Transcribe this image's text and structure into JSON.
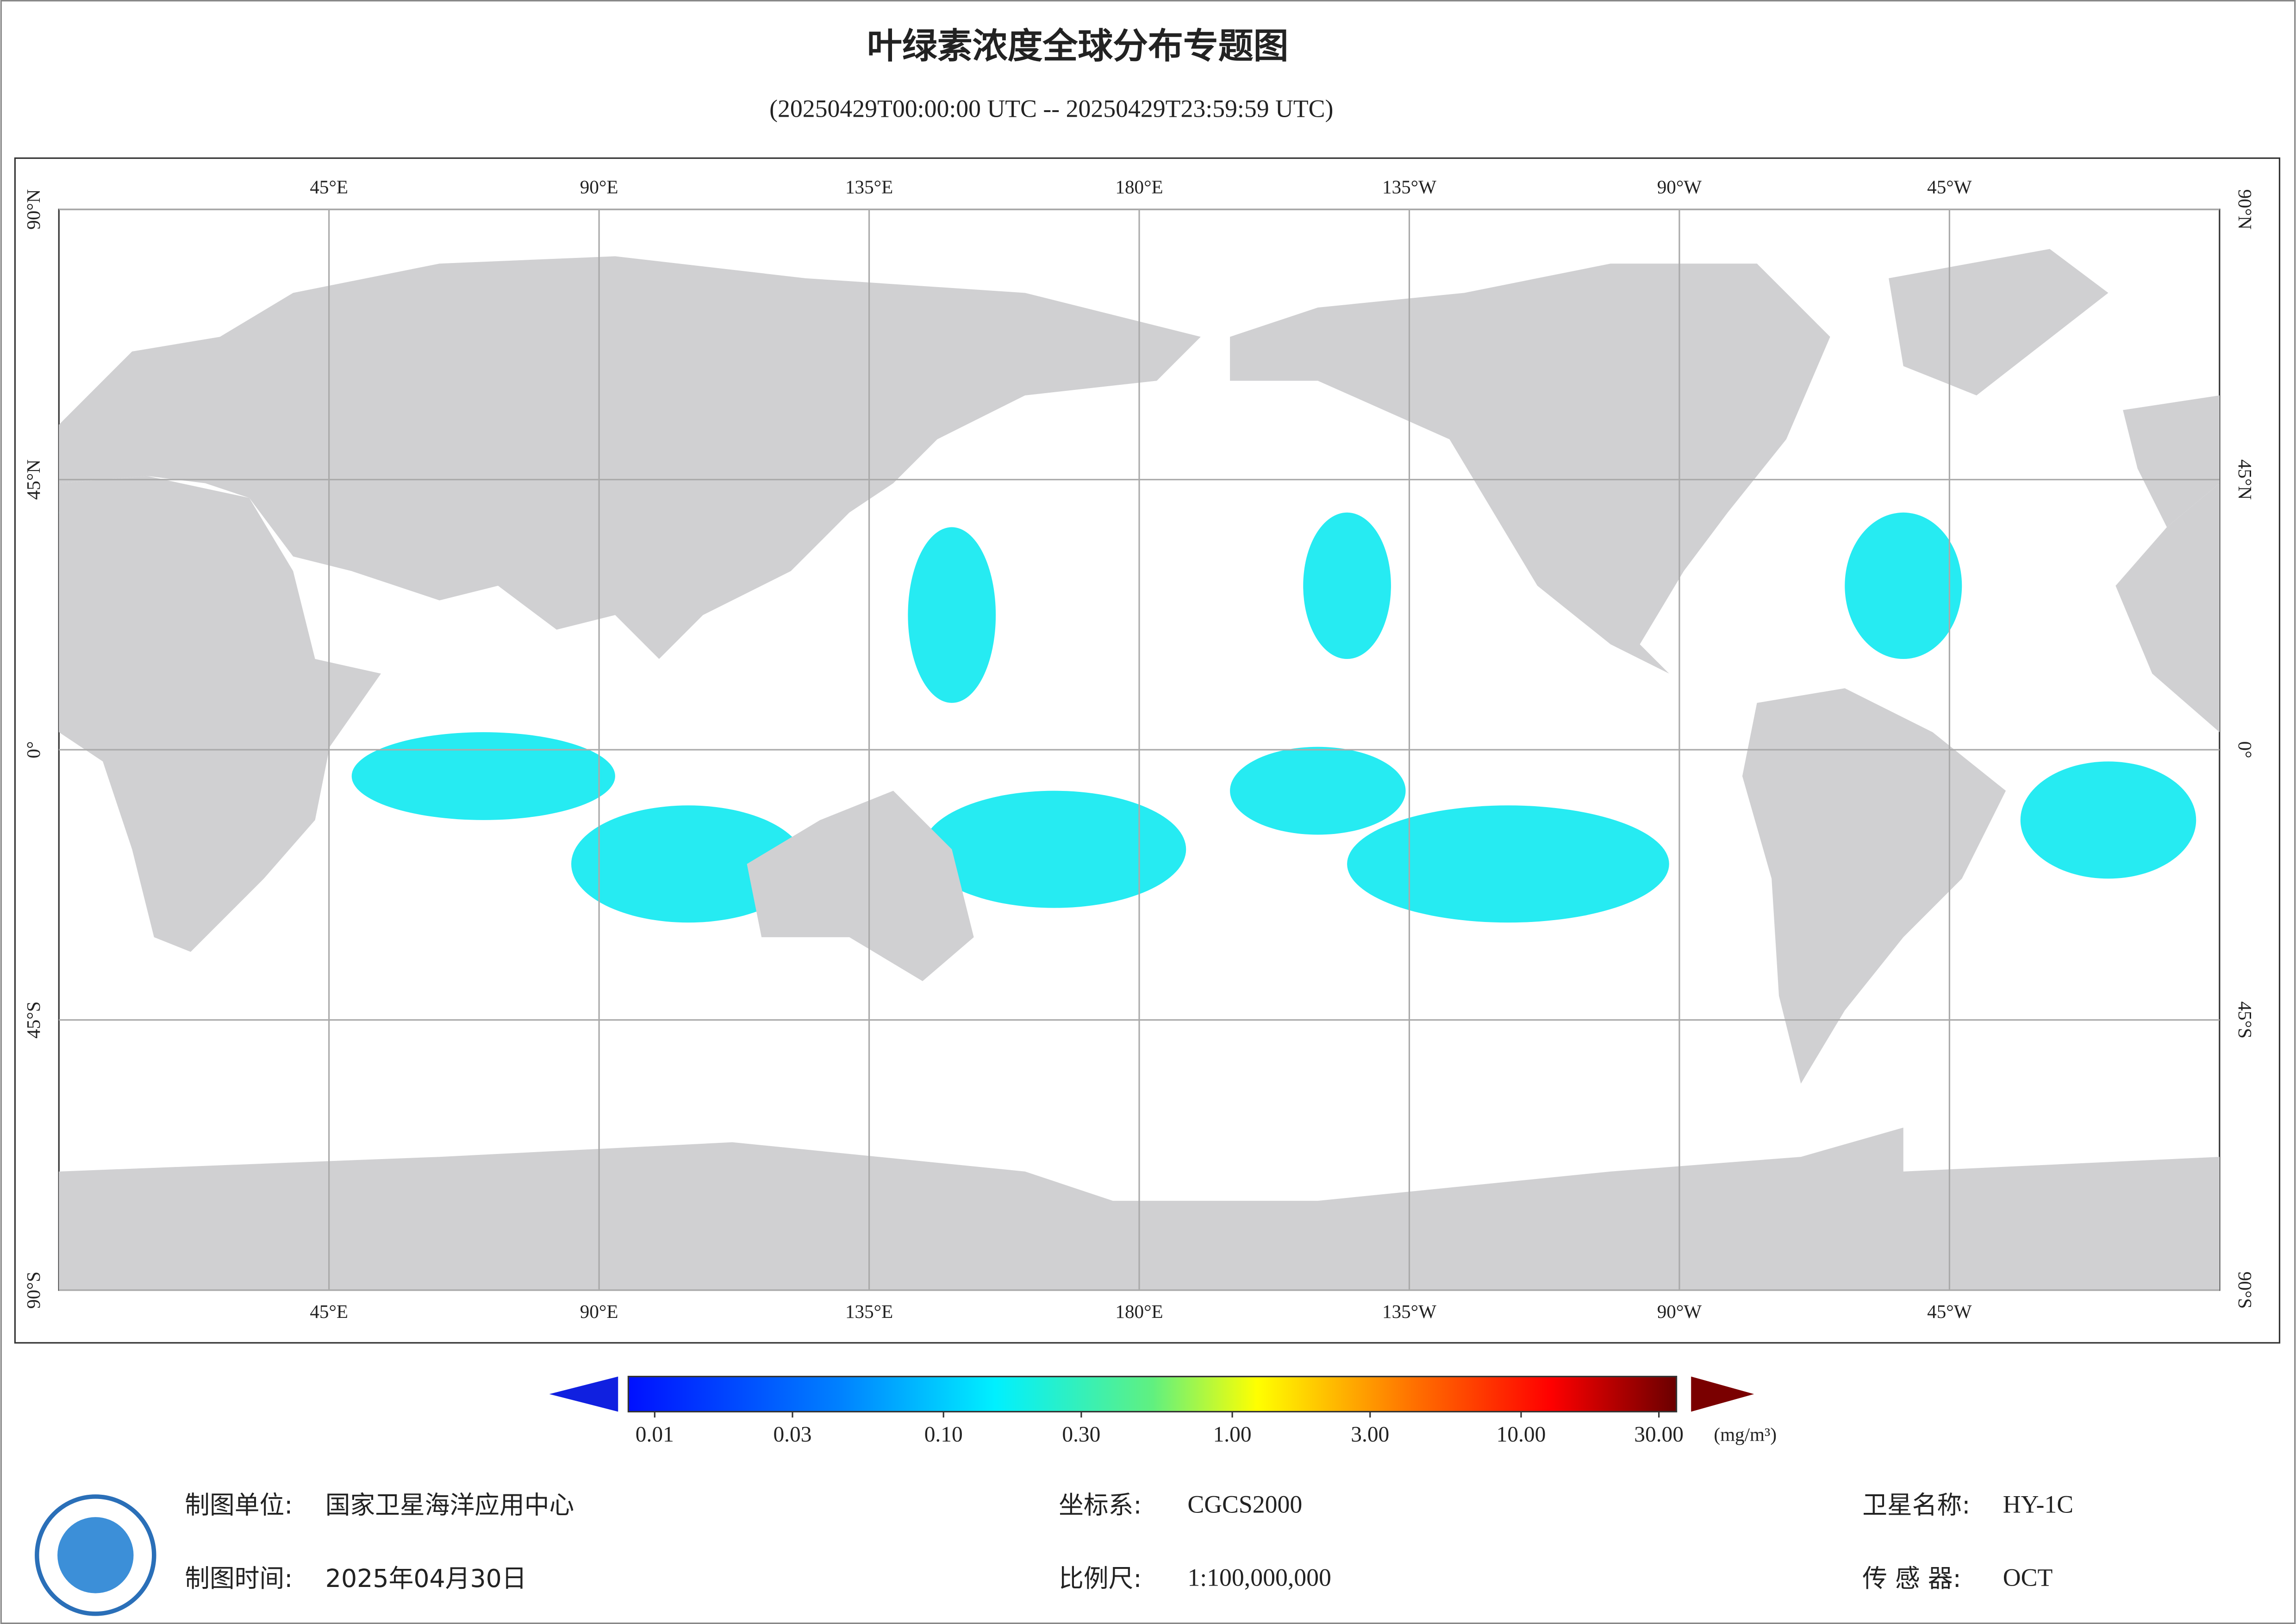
{
  "header": {
    "title": "叶绿素浓度全球分布专题图",
    "subtitle": "(20250429T00:00:00 UTC -- 20250429T23:59:59 UTC)"
  },
  "map": {
    "lonlim": [
      0,
      360
    ],
    "latlim": [
      -90,
      90
    ],
    "lon_ticks": [
      {
        "value": 45,
        "label": "45°E"
      },
      {
        "value": 90,
        "label": "90°E"
      },
      {
        "value": 135,
        "label": "135°E"
      },
      {
        "value": 180,
        "label": "180°E"
      },
      {
        "value": 225,
        "label": "135°W"
      },
      {
        "value": 270,
        "label": "90°W"
      },
      {
        "value": 315,
        "label": "45°W"
      }
    ],
    "lat_ticks": [
      {
        "value": 90,
        "label": "90°N"
      },
      {
        "value": 45,
        "label": "45°N"
      },
      {
        "value": 0,
        "label": "0°"
      },
      {
        "value": -45,
        "label": "45°S"
      },
      {
        "value": -90,
        "label": "90°S"
      }
    ]
  },
  "colorbar": {
    "range": [
      0.01,
      30
    ],
    "log": true,
    "ticks": [
      0.01,
      0.03,
      {
        "value": 0.1,
        "label": "0.10"
      },
      {
        "value": 0.3,
        "label": "0.30"
      },
      {
        "value": 1,
        "label": "1.00"
      },
      {
        "value": 3,
        "label": "3.00"
      },
      {
        "value": 10,
        "label": "10.00"
      },
      {
        "value": 30,
        "label": "30.00"
      }
    ],
    "unit": "(mg/m³)"
  },
  "footer": {
    "unit_label": "制图单位:",
    "unit": "国家卫星海洋应用中心",
    "time_label": "制图时间:",
    "time": "2025年04月30日",
    "crs_label": "坐标系:",
    "crs": "CGCS2000",
    "scale_label": "比例尺:",
    "scale": "1:100,000,000",
    "satellite_label": "卫星名称:",
    "satellite": "HY-1C",
    "sensor_label": "传 感 器:",
    "sensor": "OCT"
  }
}
